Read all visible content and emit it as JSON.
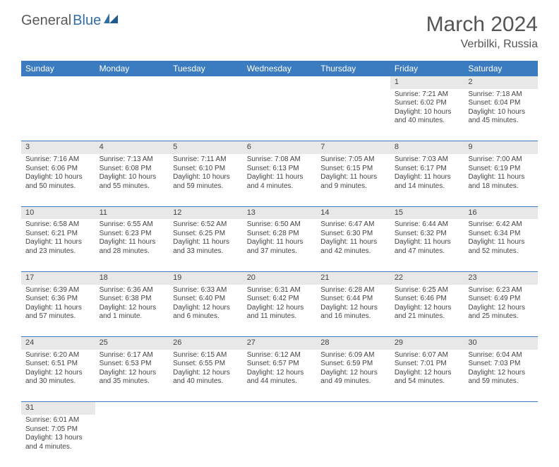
{
  "logo": {
    "general": "General",
    "blue": "Blue"
  },
  "title": "March 2024",
  "location": "Verbilki, Russia",
  "columns": [
    "Sunday",
    "Monday",
    "Tuesday",
    "Wednesday",
    "Thursday",
    "Friday",
    "Saturday"
  ],
  "colors": {
    "header_bg": "#3b7bbf",
    "header_text": "#ffffff",
    "daynum_bg": "#e8e8e8",
    "row_border": "#3b7bbf",
    "text": "#444444",
    "title_text": "#555555",
    "logo_gray": "#5a5a5a",
    "logo_blue": "#2f6fa8"
  },
  "typography": {
    "title_fontsize": 30,
    "location_fontsize": 16,
    "header_fontsize": 12,
    "daynum_fontsize": 11,
    "body_fontsize": 10
  },
  "weeks": [
    [
      null,
      null,
      null,
      null,
      null,
      {
        "day": "1",
        "sunrise": "Sunrise: 7:21 AM",
        "sunset": "Sunset: 6:02 PM",
        "daylight": "Daylight: 10 hours and 40 minutes."
      },
      {
        "day": "2",
        "sunrise": "Sunrise: 7:18 AM",
        "sunset": "Sunset: 6:04 PM",
        "daylight": "Daylight: 10 hours and 45 minutes."
      }
    ],
    [
      {
        "day": "3",
        "sunrise": "Sunrise: 7:16 AM",
        "sunset": "Sunset: 6:06 PM",
        "daylight": "Daylight: 10 hours and 50 minutes."
      },
      {
        "day": "4",
        "sunrise": "Sunrise: 7:13 AM",
        "sunset": "Sunset: 6:08 PM",
        "daylight": "Daylight: 10 hours and 55 minutes."
      },
      {
        "day": "5",
        "sunrise": "Sunrise: 7:11 AM",
        "sunset": "Sunset: 6:10 PM",
        "daylight": "Daylight: 10 hours and 59 minutes."
      },
      {
        "day": "6",
        "sunrise": "Sunrise: 7:08 AM",
        "sunset": "Sunset: 6:13 PM",
        "daylight": "Daylight: 11 hours and 4 minutes."
      },
      {
        "day": "7",
        "sunrise": "Sunrise: 7:05 AM",
        "sunset": "Sunset: 6:15 PM",
        "daylight": "Daylight: 11 hours and 9 minutes."
      },
      {
        "day": "8",
        "sunrise": "Sunrise: 7:03 AM",
        "sunset": "Sunset: 6:17 PM",
        "daylight": "Daylight: 11 hours and 14 minutes."
      },
      {
        "day": "9",
        "sunrise": "Sunrise: 7:00 AM",
        "sunset": "Sunset: 6:19 PM",
        "daylight": "Daylight: 11 hours and 18 minutes."
      }
    ],
    [
      {
        "day": "10",
        "sunrise": "Sunrise: 6:58 AM",
        "sunset": "Sunset: 6:21 PM",
        "daylight": "Daylight: 11 hours and 23 minutes."
      },
      {
        "day": "11",
        "sunrise": "Sunrise: 6:55 AM",
        "sunset": "Sunset: 6:23 PM",
        "daylight": "Daylight: 11 hours and 28 minutes."
      },
      {
        "day": "12",
        "sunrise": "Sunrise: 6:52 AM",
        "sunset": "Sunset: 6:25 PM",
        "daylight": "Daylight: 11 hours and 33 minutes."
      },
      {
        "day": "13",
        "sunrise": "Sunrise: 6:50 AM",
        "sunset": "Sunset: 6:28 PM",
        "daylight": "Daylight: 11 hours and 37 minutes."
      },
      {
        "day": "14",
        "sunrise": "Sunrise: 6:47 AM",
        "sunset": "Sunset: 6:30 PM",
        "daylight": "Daylight: 11 hours and 42 minutes."
      },
      {
        "day": "15",
        "sunrise": "Sunrise: 6:44 AM",
        "sunset": "Sunset: 6:32 PM",
        "daylight": "Daylight: 11 hours and 47 minutes."
      },
      {
        "day": "16",
        "sunrise": "Sunrise: 6:42 AM",
        "sunset": "Sunset: 6:34 PM",
        "daylight": "Daylight: 11 hours and 52 minutes."
      }
    ],
    [
      {
        "day": "17",
        "sunrise": "Sunrise: 6:39 AM",
        "sunset": "Sunset: 6:36 PM",
        "daylight": "Daylight: 11 hours and 57 minutes."
      },
      {
        "day": "18",
        "sunrise": "Sunrise: 6:36 AM",
        "sunset": "Sunset: 6:38 PM",
        "daylight": "Daylight: 12 hours and 1 minute."
      },
      {
        "day": "19",
        "sunrise": "Sunrise: 6:33 AM",
        "sunset": "Sunset: 6:40 PM",
        "daylight": "Daylight: 12 hours and 6 minutes."
      },
      {
        "day": "20",
        "sunrise": "Sunrise: 6:31 AM",
        "sunset": "Sunset: 6:42 PM",
        "daylight": "Daylight: 12 hours and 11 minutes."
      },
      {
        "day": "21",
        "sunrise": "Sunrise: 6:28 AM",
        "sunset": "Sunset: 6:44 PM",
        "daylight": "Daylight: 12 hours and 16 minutes."
      },
      {
        "day": "22",
        "sunrise": "Sunrise: 6:25 AM",
        "sunset": "Sunset: 6:46 PM",
        "daylight": "Daylight: 12 hours and 21 minutes."
      },
      {
        "day": "23",
        "sunrise": "Sunrise: 6:23 AM",
        "sunset": "Sunset: 6:49 PM",
        "daylight": "Daylight: 12 hours and 25 minutes."
      }
    ],
    [
      {
        "day": "24",
        "sunrise": "Sunrise: 6:20 AM",
        "sunset": "Sunset: 6:51 PM",
        "daylight": "Daylight: 12 hours and 30 minutes."
      },
      {
        "day": "25",
        "sunrise": "Sunrise: 6:17 AM",
        "sunset": "Sunset: 6:53 PM",
        "daylight": "Daylight: 12 hours and 35 minutes."
      },
      {
        "day": "26",
        "sunrise": "Sunrise: 6:15 AM",
        "sunset": "Sunset: 6:55 PM",
        "daylight": "Daylight: 12 hours and 40 minutes."
      },
      {
        "day": "27",
        "sunrise": "Sunrise: 6:12 AM",
        "sunset": "Sunset: 6:57 PM",
        "daylight": "Daylight: 12 hours and 44 minutes."
      },
      {
        "day": "28",
        "sunrise": "Sunrise: 6:09 AM",
        "sunset": "Sunset: 6:59 PM",
        "daylight": "Daylight: 12 hours and 49 minutes."
      },
      {
        "day": "29",
        "sunrise": "Sunrise: 6:07 AM",
        "sunset": "Sunset: 7:01 PM",
        "daylight": "Daylight: 12 hours and 54 minutes."
      },
      {
        "day": "30",
        "sunrise": "Sunrise: 6:04 AM",
        "sunset": "Sunset: 7:03 PM",
        "daylight": "Daylight: 12 hours and 59 minutes."
      }
    ],
    [
      {
        "day": "31",
        "sunrise": "Sunrise: 6:01 AM",
        "sunset": "Sunset: 7:05 PM",
        "daylight": "Daylight: 13 hours and 4 minutes."
      },
      null,
      null,
      null,
      null,
      null,
      null
    ]
  ]
}
